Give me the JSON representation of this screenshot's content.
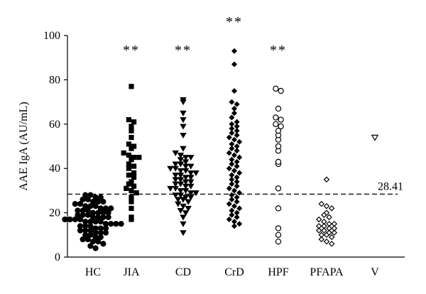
{
  "chart_data": {
    "type": "scatter",
    "title": "",
    "xlabel": "",
    "ylabel": "AAE IgA (AU/mL)",
    "ylim": [
      0,
      100
    ],
    "yticks": [
      0,
      20,
      40,
      60,
      80,
      100
    ],
    "grid": false,
    "categories": [
      "HC",
      "JIA",
      "CD",
      "CrD",
      "HPF",
      "PFAPA",
      "V"
    ],
    "threshold": {
      "value": 28.41,
      "label": "28.41",
      "style": "dashed"
    },
    "significance": [
      {
        "category": "JIA",
        "label": "**"
      },
      {
        "category": "CD",
        "label": "**"
      },
      {
        "category": "CrD",
        "label": "**"
      },
      {
        "category": "HPF",
        "label": "**"
      }
    ],
    "series": [
      {
        "category": "HC",
        "marker": "circle-filled",
        "values": [
          28,
          28,
          27,
          27,
          26,
          26,
          25,
          25,
          25,
          24,
          24,
          23,
          23,
          23,
          22,
          22,
          22,
          21,
          21,
          21,
          20,
          20,
          20,
          20,
          19,
          19,
          19,
          18,
          18,
          18,
          18,
          17,
          17,
          17,
          17,
          16,
          16,
          16,
          16,
          15,
          15,
          15,
          15,
          14,
          14,
          14,
          13,
          13,
          13,
          12,
          12,
          12,
          11,
          11,
          11,
          10,
          10,
          9,
          9,
          8,
          8,
          7,
          7,
          6,
          5,
          4
        ]
      },
      {
        "category": "JIA",
        "marker": "square-filled",
        "values": [
          77,
          62,
          61,
          59,
          57,
          54,
          51,
          50,
          49,
          47,
          46,
          45,
          45,
          44,
          42,
          41,
          40,
          38,
          37,
          36,
          34,
          33,
          32,
          31,
          30,
          29,
          27,
          25,
          22,
          18,
          17
        ]
      },
      {
        "category": "CD",
        "marker": "triangle-down-filled",
        "values": [
          71,
          70,
          65,
          62,
          59,
          55,
          49,
          47,
          46,
          45,
          45,
          44,
          43,
          42,
          42,
          41,
          41,
          40,
          40,
          39,
          39,
          38,
          38,
          37,
          37,
          36,
          36,
          35,
          35,
          34,
          34,
          33,
          33,
          32,
          32,
          31,
          31,
          30,
          30,
          29,
          29,
          28,
          28,
          27,
          27,
          26,
          26,
          25,
          24,
          23,
          22,
          21,
          20,
          18,
          15,
          11
        ]
      },
      {
        "category": "CrD",
        "marker": "diamond-filled",
        "values": [
          93,
          87,
          75,
          70,
          69,
          67,
          65,
          63,
          61,
          60,
          59,
          58,
          57,
          56,
          55,
          54,
          53,
          52,
          51,
          50,
          49,
          48,
          47,
          46,
          45,
          44,
          43,
          42,
          41,
          40,
          39,
          38,
          37,
          36,
          35,
          34,
          33,
          32,
          31,
          30,
          29,
          28,
          27,
          26,
          25,
          24,
          23,
          22,
          21,
          20,
          19,
          18,
          17,
          16,
          15,
          14
        ]
      },
      {
        "category": "HPF",
        "marker": "circle-open",
        "values": [
          76,
          75,
          67,
          63,
          62,
          60,
          59,
          57,
          55,
          53,
          50,
          48,
          43,
          42,
          31,
          22,
          13,
          10,
          7
        ]
      },
      {
        "category": "PFAPA",
        "marker": "diamond-open",
        "values": [
          35,
          24,
          23,
          22,
          20,
          19,
          18,
          17,
          16,
          15,
          15,
          14,
          14,
          13,
          13,
          12,
          12,
          11,
          11,
          10,
          10,
          9,
          8,
          7,
          6
        ]
      },
      {
        "category": "V",
        "marker": "triangle-down-open",
        "values": [
          54
        ]
      }
    ]
  }
}
